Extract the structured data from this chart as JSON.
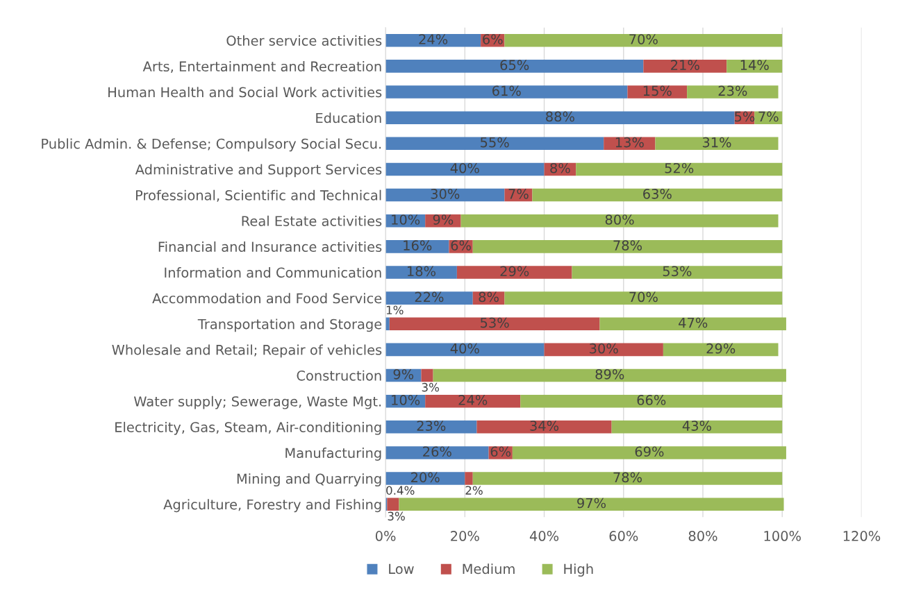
{
  "chart_data": {
    "type": "bar",
    "orientation": "horizontal",
    "stacked": true,
    "categories": [
      "Other service activities",
      "Arts, Entertainment and Recreation",
      "Human Health and Social Work activities",
      "Education",
      "Public Admin. & Defense; Compulsory Social Secu.",
      "Administrative and Support Services",
      "Professional, Scientific and Technical",
      "Real Estate activities",
      "Financial and Insurance activities",
      "Information and Communication",
      "Accommodation and Food Service",
      "Transportation and Storage",
      "Wholesale and Retail; Repair of vehicles",
      "Construction",
      "Water supply; Sewerage, Waste Mgt.",
      "Electricity, Gas, Steam, Air-conditioning",
      "Manufacturing",
      "Mining and Quarrying",
      "Agriculture, Forestry and Fishing"
    ],
    "series": [
      {
        "name": "Low",
        "color": "#4f81bd",
        "values": [
          24,
          65,
          61,
          88,
          55,
          40,
          30,
          10,
          16,
          18,
          22,
          1,
          40,
          9,
          10,
          23,
          26,
          20,
          0.4
        ],
        "value_labels": [
          "24%",
          "65%",
          "61%",
          "88%",
          "55%",
          "40%",
          "30%",
          "10%",
          "16%",
          "18%",
          "22%",
          "1%",
          "40%",
          "9%",
          "10%",
          "23%",
          "26%",
          "20%",
          "0.4%"
        ]
      },
      {
        "name": "Medium",
        "color": "#c0504d",
        "values": [
          6,
          21,
          15,
          5,
          13,
          8,
          7,
          9,
          6,
          29,
          8,
          53,
          30,
          3,
          24,
          34,
          6,
          2,
          3
        ],
        "value_labels": [
          "6%",
          "21%",
          "15%",
          "5%",
          "13%",
          "8%",
          "7%",
          "9%",
          "6%",
          "29%",
          "8%",
          "53%",
          "30%",
          "3%",
          "24%",
          "34%",
          "6%",
          "2%",
          "3%"
        ]
      },
      {
        "name": "High",
        "color": "#9bbb59",
        "values": [
          70,
          14,
          23,
          7,
          31,
          52,
          63,
          80,
          78,
          53,
          70,
          47,
          29,
          89,
          66,
          43,
          69,
          78,
          97
        ],
        "value_labels": [
          "70%",
          "14%",
          "23%",
          "7%",
          "31%",
          "52%",
          "63%",
          "80%",
          "78%",
          "53%",
          "70%",
          "47%",
          "29%",
          "89%",
          "66%",
          "43%",
          "69%",
          "78%",
          "97%"
        ]
      }
    ],
    "xlim": [
      0,
      120
    ],
    "xticks": [
      {
        "value": 0,
        "label": "0%"
      },
      {
        "value": 20,
        "label": "20%"
      },
      {
        "value": 40,
        "label": "40%"
      },
      {
        "value": 60,
        "label": "60%"
      },
      {
        "value": 80,
        "label": "80%"
      },
      {
        "value": 100,
        "label": "100%"
      },
      {
        "value": 120,
        "label": "120%"
      }
    ],
    "grid": "x",
    "legend": "bottom"
  }
}
